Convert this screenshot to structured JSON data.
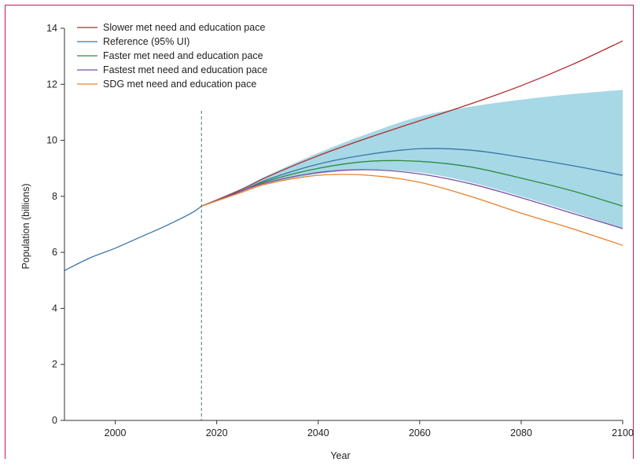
{
  "chart_data": {
    "type": "line",
    "xlabel": "Year",
    "ylabel": "Population (billions)",
    "xlim": [
      1990,
      2100
    ],
    "ylim": [
      0,
      14
    ],
    "x_ticks": [
      2000,
      2020,
      2040,
      2060,
      2080,
      2100
    ],
    "y_ticks": [
      0,
      2,
      4,
      6,
      8,
      10,
      12,
      14
    ],
    "grid": false,
    "legend_position": "top-left",
    "forecast_start_year": 2017,
    "historical": {
      "name": "Reference (95% UI)",
      "color": "#3a73a8",
      "x": [
        1990,
        1995,
        2000,
        2005,
        2010,
        2015,
        2017
      ],
      "y": [
        5.35,
        5.8,
        6.15,
        6.55,
        6.95,
        7.4,
        7.65
      ]
    },
    "uncertainty_band": {
      "color": "#a7d8e6",
      "x": [
        2017,
        2025,
        2030,
        2040,
        2050,
        2060,
        2070,
        2080,
        2090,
        2100
      ],
      "lower": [
        7.65,
        8.2,
        8.45,
        8.8,
        8.95,
        8.85,
        8.5,
        8.0,
        7.45,
        6.85
      ],
      "upper": [
        7.65,
        8.3,
        8.75,
        9.55,
        10.25,
        10.85,
        11.2,
        11.45,
        11.65,
        11.8
      ]
    },
    "series": [
      {
        "name": "Slower met need and education pace",
        "color": "#b22a2a",
        "x": [
          2017,
          2025,
          2030,
          2040,
          2050,
          2060,
          2070,
          2080,
          2090,
          2100
        ],
        "y": [
          7.65,
          8.25,
          8.7,
          9.45,
          10.1,
          10.7,
          11.3,
          11.95,
          12.7,
          13.55
        ]
      },
      {
        "name": "Reference (95% UI)",
        "color": "#3a73a8",
        "x": [
          2017,
          2025,
          2030,
          2040,
          2050,
          2060,
          2070,
          2080,
          2090,
          2100
        ],
        "y": [
          7.65,
          8.2,
          8.6,
          9.15,
          9.5,
          9.7,
          9.65,
          9.4,
          9.1,
          8.75
        ]
      },
      {
        "name": "Faster met need and education pace",
        "color": "#2e8b3e",
        "x": [
          2017,
          2025,
          2030,
          2040,
          2050,
          2060,
          2070,
          2080,
          2090,
          2100
        ],
        "y": [
          7.65,
          8.2,
          8.55,
          9.0,
          9.25,
          9.25,
          9.05,
          8.65,
          8.2,
          7.65
        ]
      },
      {
        "name": "Fastest met need and education pace",
        "color": "#7b4fa1",
        "x": [
          2017,
          2025,
          2030,
          2040,
          2050,
          2060,
          2070,
          2080,
          2090,
          2100
        ],
        "y": [
          7.65,
          8.2,
          8.5,
          8.85,
          8.95,
          8.8,
          8.45,
          7.95,
          7.4,
          6.85
        ]
      },
      {
        "name": "SDG met need and education pace",
        "color": "#e8802a",
        "x": [
          2017,
          2025,
          2030,
          2040,
          2050,
          2060,
          2070,
          2080,
          2090,
          2100
        ],
        "y": [
          7.65,
          8.15,
          8.45,
          8.75,
          8.75,
          8.5,
          8.0,
          7.4,
          6.85,
          6.25
        ]
      }
    ]
  }
}
